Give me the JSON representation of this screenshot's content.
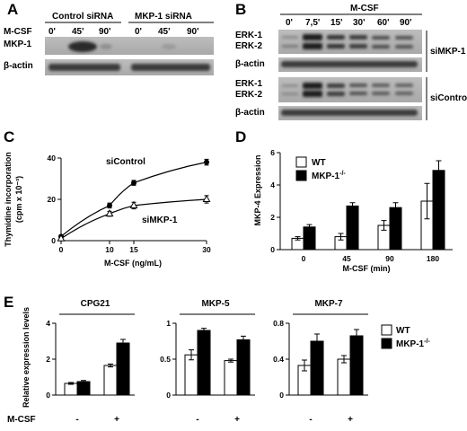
{
  "panels": {
    "A": {
      "letter": "A",
      "treatment": "M-CSF",
      "groups": [
        {
          "label": "Control siRNA",
          "times": [
            "0'",
            "45'",
            "90'"
          ]
        },
        {
          "label": "MKP-1 siRNA",
          "times": [
            "0'",
            "45'",
            "90'"
          ]
        }
      ],
      "rows": [
        "MKP-1",
        "β-actin"
      ]
    },
    "B": {
      "letter": "B",
      "treatment": "M-CSF",
      "times": [
        "0'",
        "7,5'",
        "15'",
        "30'",
        "60'",
        "90'"
      ],
      "blocks": [
        {
          "group": "siMKP-1",
          "rows": [
            "ERK-1",
            "ERK-2",
            "β-actin"
          ]
        },
        {
          "group": "siControl",
          "rows": [
            "ERK-1",
            "ERK-2",
            "β-actin"
          ]
        }
      ]
    },
    "C": {
      "letter": "C"
    },
    "D": {
      "letter": "D"
    },
    "E": {
      "letter": "E",
      "treatment_label": "M-CSF",
      "treatment_values": [
        "-",
        "+"
      ]
    }
  },
  "chart_data": [
    {
      "panel": "C",
      "type": "line",
      "xlabel": "M-CSF (ng/mL)",
      "ylabel": "Thymidine incorporation",
      "ylabel_unit": "(cpm x 10⁻³)",
      "x": [
        0,
        10,
        15,
        30
      ],
      "xticks": [
        "0",
        "10",
        "15",
        "30"
      ],
      "yticks": [
        "0",
        "20",
        "40"
      ],
      "xlim": [
        0,
        30
      ],
      "ylim": [
        0,
        40
      ],
      "series": [
        {
          "name": "siControl",
          "marker": "filled-circle",
          "values": [
            2,
            17,
            28,
            38
          ],
          "errors": [
            0.5,
            1.2,
            1.2,
            1.4
          ]
        },
        {
          "name": "siMKP-1",
          "marker": "open-triangle",
          "values": [
            1,
            13,
            17,
            20
          ],
          "errors": [
            0.5,
            1.2,
            1.6,
            1.8
          ]
        }
      ]
    },
    {
      "panel": "D",
      "type": "bar",
      "xlabel": "M-CSF (min)",
      "ylabel": "MKP-4 Expression",
      "categories": [
        "0",
        "45",
        "90",
        "180"
      ],
      "yticks": [
        "0",
        "2",
        "4",
        "6"
      ],
      "ylim": [
        0,
        6
      ],
      "legend_position": "top-left",
      "series": [
        {
          "name": "WT",
          "color": "#ffffff",
          "values": [
            0.7,
            0.8,
            1.5,
            3.0
          ],
          "errors": [
            0.1,
            0.2,
            0.3,
            1.1
          ]
        },
        {
          "name": "MKP-1",
          "superscript": "-/-",
          "color": "#000000",
          "values": [
            1.4,
            2.7,
            2.6,
            4.9
          ],
          "errors": [
            0.15,
            0.2,
            0.3,
            0.6
          ]
        }
      ]
    },
    {
      "panel": "E",
      "type": "bar",
      "ylabel": "Relative expression levels",
      "legend_position": "right",
      "legend": [
        {
          "name": "WT",
          "color": "#ffffff"
        },
        {
          "name": "MKP-1",
          "superscript": "-/-",
          "color": "#000000"
        }
      ],
      "subplots": [
        {
          "title": "CPG21",
          "categories": [
            "-",
            "+"
          ],
          "yticks": [
            "0",
            "2",
            "4"
          ],
          "ylim": [
            0,
            4
          ],
          "series": [
            {
              "name": "WT",
              "values": [
                0.65,
                1.65
              ],
              "errors": [
                0.05,
                0.08
              ]
            },
            {
              "name": "MKP-1",
              "values": [
                0.75,
                2.9
              ],
              "errors": [
                0.06,
                0.2
              ]
            }
          ]
        },
        {
          "title": "MKP-5",
          "categories": [
            "-",
            "+"
          ],
          "yticks": [
            "0",
            "0.5",
            "1"
          ],
          "ylim": [
            0,
            1.0
          ],
          "series": [
            {
              "name": "WT",
              "values": [
                0.56,
                0.48
              ],
              "errors": [
                0.07,
                0.02
              ]
            },
            {
              "name": "MKP-1",
              "values": [
                0.9,
                0.77
              ],
              "errors": [
                0.03,
                0.05
              ]
            }
          ]
        },
        {
          "title": "MKP-7",
          "categories": [
            "-",
            "+"
          ],
          "yticks": [
            "0",
            "0.4",
            "0.8"
          ],
          "ylim": [
            0,
            0.8
          ],
          "series": [
            {
              "name": "WT",
              "values": [
                0.33,
                0.4
              ],
              "errors": [
                0.06,
                0.04
              ]
            },
            {
              "name": "MKP-1",
              "values": [
                0.6,
                0.66
              ],
              "errors": [
                0.08,
                0.07
              ]
            }
          ]
        }
      ]
    }
  ]
}
